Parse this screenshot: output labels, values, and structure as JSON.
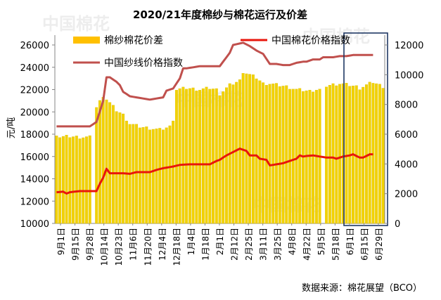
{
  "chart_data": {
    "type": "bar+line",
    "title": "2020/21年度棉纱与棉花运行及价差",
    "source": "数据来源：棉花展望（BCO）",
    "ylabel_left": "元/吨",
    "ylim_left": [
      10000,
      26000
    ],
    "ylim_right": [
      0,
      12000
    ],
    "yticks_left": [
      "10000",
      "12000",
      "14000",
      "16000",
      "18000",
      "20000",
      "22000",
      "24000",
      "26000"
    ],
    "yticks_right": [
      "0",
      "2000",
      "4000",
      "6000",
      "8000",
      "10000",
      "12000"
    ],
    "watermark": "中国棉花",
    "x_labels": [
      "9月1日",
      "9月15日",
      "9月28日",
      "10月14日",
      "10月23日",
      "11月6日",
      "11月20日",
      "12月4日",
      "12月18日",
      "1月4日",
      "1月18日",
      "2月1日",
      "2月12日",
      "2月25日",
      "3月11日",
      "3月25日",
      "4月8日",
      "4月22日",
      "5月5日",
      "5月18日",
      "6月1日",
      "6月15日",
      "6月29日"
    ],
    "legend": [
      {
        "name": "棉纱棉花价差",
        "color": "#FFC000",
        "kind": "bar"
      },
      {
        "name": "中国棉花价格指数",
        "color": "#E8160C",
        "kind": "line"
      },
      {
        "name": "中国纱线价格指数",
        "color": "#C0504D",
        "kind": "line"
      }
    ],
    "series": [
      {
        "name": "棉纱棉花价差",
        "type": "bar",
        "axis": "right",
        "anchors": [
          [
            0,
            6000
          ],
          [
            0.5,
            5800
          ],
          [
            4,
            5850
          ],
          [
            7,
            5800
          ],
          [
            9,
            5800
          ],
          [
            10,
            5800
          ],
          [
            11,
            6000
          ],
          [
            12,
            7800
          ],
          [
            14,
            8600
          ],
          [
            16,
            8100
          ],
          [
            18,
            7600
          ],
          [
            20,
            7300
          ],
          [
            22,
            6700
          ],
          [
            25,
            6500
          ],
          [
            28,
            6400
          ],
          [
            31,
            6300
          ],
          [
            34,
            6500
          ],
          [
            35,
            7000
          ],
          [
            36,
            9000
          ],
          [
            39,
            9100
          ],
          [
            43,
            9000
          ],
          [
            46,
            9100
          ],
          [
            48,
            9000
          ],
          [
            49,
            8700
          ],
          [
            52,
            9300
          ],
          [
            55,
            9600
          ],
          [
            56,
            10200
          ],
          [
            60,
            9800
          ],
          [
            62,
            9400
          ],
          [
            64,
            9400
          ],
          [
            69,
            9200
          ],
          [
            72,
            9000
          ],
          [
            76,
            8900
          ],
          [
            78,
            9000
          ],
          [
            79,
            9000
          ],
          [
            80,
            9200
          ],
          [
            82,
            9300
          ],
          [
            85,
            9400
          ],
          [
            88,
            9300
          ],
          [
            90,
            9200
          ],
          [
            91,
            9100
          ],
          [
            95,
            9500
          ],
          [
            97,
            9300
          ],
          [
            98,
            9200
          ]
        ],
        "gaps": [
          [
            10,
            12
          ],
          [
            49,
            50
          ],
          [
            74,
            75
          ],
          [
            79,
            81
          ],
          [
            89,
            90
          ]
        ]
      },
      {
        "name": "中国棉花价格指数",
        "type": "line",
        "axis": "left",
        "anchors": [
          [
            0,
            12800
          ],
          [
            2,
            12850
          ],
          [
            2.8,
            12650
          ],
          [
            4,
            12800
          ],
          [
            7,
            12900
          ],
          [
            10,
            12900
          ],
          [
            12,
            12900
          ],
          [
            12.5,
            13300
          ],
          [
            14,
            14100
          ],
          [
            15,
            14900
          ],
          [
            16,
            14500
          ],
          [
            18,
            14500
          ],
          [
            20,
            14500
          ],
          [
            22,
            14450
          ],
          [
            24,
            14600
          ],
          [
            28,
            14600
          ],
          [
            30,
            14800
          ],
          [
            32,
            14950
          ],
          [
            35,
            15100
          ],
          [
            37,
            15250
          ],
          [
            40,
            15300
          ],
          [
            43,
            15300
          ],
          [
            46,
            15300
          ],
          [
            48,
            15600
          ],
          [
            49,
            15700
          ],
          [
            51,
            16100
          ],
          [
            53,
            16400
          ],
          [
            55,
            16700
          ],
          [
            56,
            16600
          ],
          [
            57,
            16500
          ],
          [
            58,
            16100
          ],
          [
            60,
            16100
          ],
          [
            61,
            15800
          ],
          [
            63,
            15700
          ],
          [
            64,
            15200
          ],
          [
            66,
            15300
          ],
          [
            68,
            15400
          ],
          [
            70,
            15600
          ],
          [
            72,
            15800
          ],
          [
            73,
            16100
          ],
          [
            74,
            16000
          ],
          [
            75,
            16050
          ],
          [
            77,
            16100
          ],
          [
            79,
            16000
          ],
          [
            81,
            15900
          ],
          [
            83,
            15900
          ],
          [
            84,
            15800
          ],
          [
            86,
            16000
          ],
          [
            88,
            16100
          ],
          [
            89,
            16200
          ],
          [
            91,
            15900
          ],
          [
            92,
            15900
          ],
          [
            94,
            16200
          ],
          [
            95,
            16200
          ]
        ],
        "gaps": [
          [
            10,
            11
          ],
          [
            49,
            50
          ],
          [
            74,
            75
          ],
          [
            80,
            81
          ],
          [
            89,
            90
          ]
        ]
      },
      {
        "name": "中国纱线价格指数",
        "type": "line",
        "axis": "left",
        "anchors": [
          [
            0,
            18700
          ],
          [
            10,
            18700
          ],
          [
            12,
            19100
          ],
          [
            14,
            21000
          ],
          [
            15,
            23100
          ],
          [
            16,
            23100
          ],
          [
            18,
            22700
          ],
          [
            19,
            22400
          ],
          [
            20,
            21800
          ],
          [
            22,
            21400
          ],
          [
            24,
            21300
          ],
          [
            26,
            21200
          ],
          [
            28,
            21100
          ],
          [
            30,
            21200
          ],
          [
            32,
            21300
          ],
          [
            33,
            21900
          ],
          [
            35,
            22100
          ],
          [
            37,
            23000
          ],
          [
            38,
            23900
          ],
          [
            39,
            23900
          ],
          [
            41,
            24000
          ],
          [
            43,
            24100
          ],
          [
            46,
            24100
          ],
          [
            48,
            24100
          ],
          [
            49,
            24100
          ],
          [
            51,
            24900
          ],
          [
            52,
            25300
          ],
          [
            53,
            26000
          ],
          [
            56,
            26200
          ],
          [
            58,
            25900
          ],
          [
            60,
            25500
          ],
          [
            62,
            25200
          ],
          [
            64,
            24300
          ],
          [
            66,
            24300
          ],
          [
            68,
            24200
          ],
          [
            70,
            24200
          ],
          [
            72,
            24400
          ],
          [
            74,
            24500
          ],
          [
            75,
            24500
          ],
          [
            77,
            24700
          ],
          [
            79,
            24700
          ],
          [
            80,
            24900
          ],
          [
            83,
            24900
          ],
          [
            85,
            25000
          ],
          [
            87,
            25000
          ],
          [
            89,
            25100
          ],
          [
            91,
            25100
          ],
          [
            93,
            25100
          ],
          [
            95,
            25100
          ]
        ],
        "gaps": [
          [
            10,
            11
          ],
          [
            49,
            50
          ],
          [
            74,
            75
          ],
          [
            80,
            81
          ],
          [
            89,
            90
          ]
        ]
      }
    ],
    "highlight_box_color": "#1F3864"
  }
}
